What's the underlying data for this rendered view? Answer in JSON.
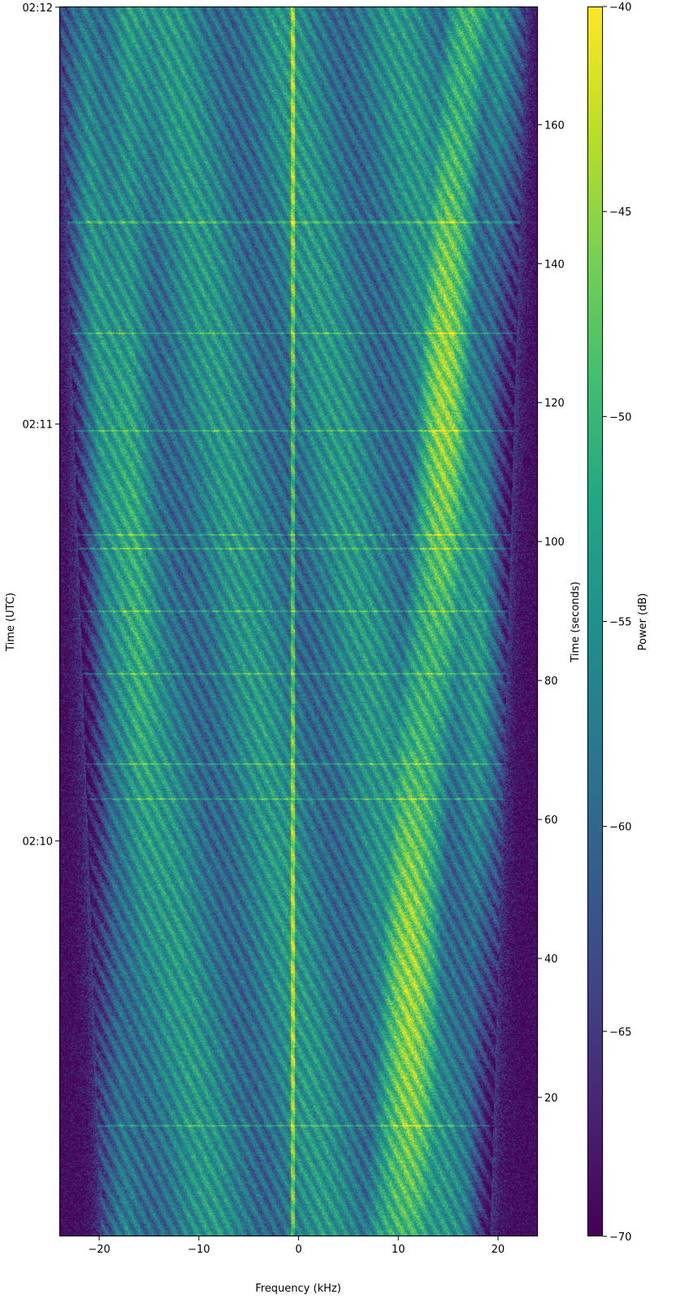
{
  "chart_data": {
    "type": "heatmap",
    "title": "",
    "xlabel": "Frequency (kHz)",
    "ylabel_left": "Time (UTC)",
    "ylabel_right": "Time (seconds)",
    "colorbar_label": "Power (dB)",
    "colormap": "viridis",
    "x_range": [
      -24,
      24
    ],
    "x_ticks": [
      -20,
      -10,
      0,
      10,
      20
    ],
    "x_tick_labels": [
      "−20",
      "−10",
      "0",
      "10",
      "20"
    ],
    "time_seconds_range": [
      0,
      177
    ],
    "right_ticks": [
      20,
      40,
      60,
      80,
      100,
      120,
      140,
      160
    ],
    "right_tick_labels": [
      "20",
      "40",
      "60",
      "80",
      "100",
      "120",
      "140",
      "160"
    ],
    "left_ticks": [
      {
        "seconds": 56.9,
        "label": "02:10"
      },
      {
        "seconds": 116.9,
        "label": "02:11"
      },
      {
        "seconds": 176.9,
        "label": "02:12"
      }
    ],
    "color_range_db": [
      -70,
      -40
    ],
    "colorbar_ticks": [
      -40,
      -45,
      -50,
      -55,
      -60,
      -65,
      -70
    ],
    "colorbar_tick_labels": [
      "−40",
      "−45",
      "−50",
      "−55",
      "−60",
      "−65",
      "−70"
    ],
    "features": {
      "band_edges_khz_at_start": [
        -19.8,
        19.2
      ],
      "band_edges_khz_at_end": [
        -24.0,
        22.8
      ],
      "carrier_khz": -0.6,
      "strong_band_khz_at_start": [
        6.5,
        13
      ],
      "strong_band_khz_at_end": [
        14.5,
        19
      ],
      "left_strong_band_khz_at_end": [
        -18.5,
        -16
      ],
      "horizontal_streaks_seconds": [
        16,
        63,
        68,
        81,
        90,
        99,
        101,
        116,
        130,
        146
      ]
    }
  }
}
